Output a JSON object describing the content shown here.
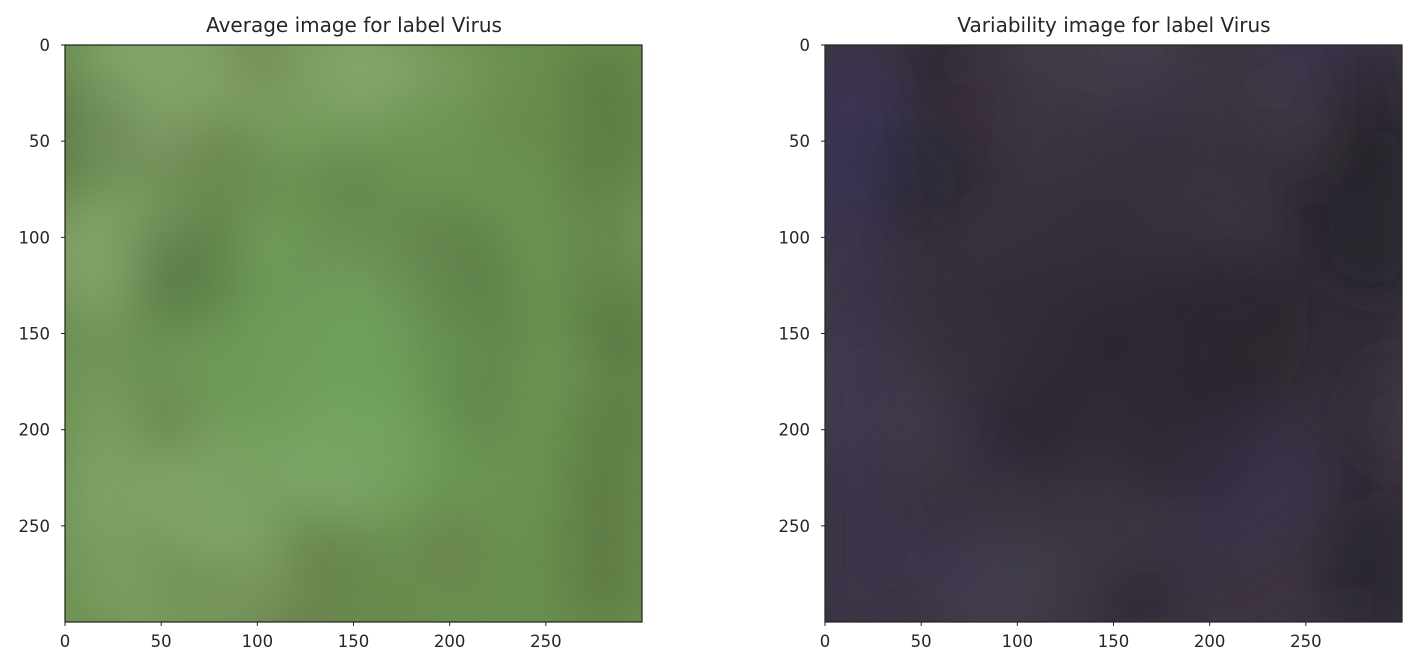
{
  "chart_data": [
    {
      "type": "heatmap",
      "title": "Average image for label Virus",
      "xlabel": "",
      "ylabel": "",
      "image_size": [
        300,
        300
      ],
      "xlim": [
        0,
        299
      ],
      "ylim": [
        299,
        0
      ],
      "xticks": [
        0,
        50,
        100,
        150,
        200,
        250
      ],
      "yticks": [
        0,
        50,
        100,
        150,
        200,
        250
      ],
      "grid": false,
      "colors": {
        "base": "#6a8f4e",
        "center": "#6ea25c",
        "light": "#8fae77",
        "dark": "#4a5e36",
        "brownish": "#6b6a4c"
      }
    },
    {
      "type": "heatmap",
      "title": "Variability image for label Virus",
      "xlabel": "",
      "ylabel": "",
      "image_size": [
        300,
        300
      ],
      "xlim": [
        0,
        299
      ],
      "ylim": [
        299,
        0
      ],
      "xticks": [
        0,
        50,
        100,
        150,
        200,
        250
      ],
      "yticks": [
        0,
        50,
        100,
        150,
        200,
        250
      ],
      "grid": false,
      "colors": {
        "base": "#3d3441",
        "center": "#2b2530",
        "light": "#4a4452",
        "dark": "#221f26",
        "edge": "#3a355a"
      }
    }
  ]
}
